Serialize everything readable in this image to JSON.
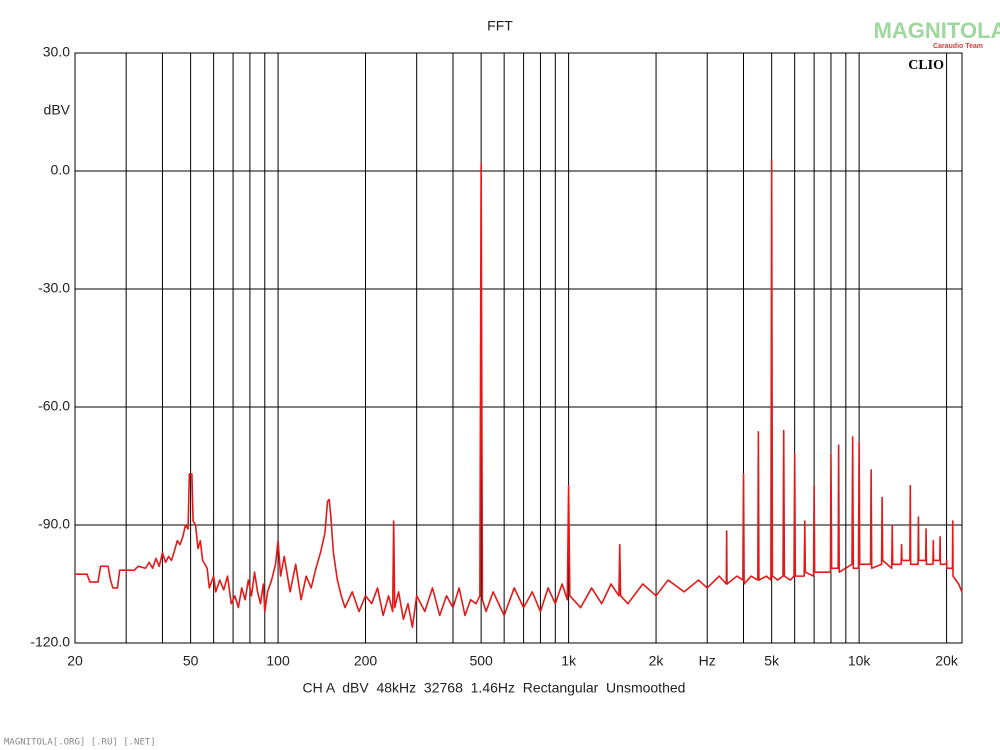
{
  "chart_data": {
    "type": "line",
    "title": "FFT",
    "y_label": "dBV",
    "footer": "CH A  dBV  48kHz  32768  1.46Hz  Rectangular  Unsmoothed",
    "annotations": [
      "CLIO"
    ],
    "x_log": true,
    "grid": true,
    "xlim": [
      20,
      22600
    ],
    "ylim": [
      -120,
      30
    ],
    "xticks": [
      {
        "value": 20,
        "label": "20"
      },
      {
        "value": 50,
        "label": "50"
      },
      {
        "value": 100,
        "label": "100"
      },
      {
        "value": 200,
        "label": "200"
      },
      {
        "value": 500,
        "label": "500"
      },
      {
        "value": 1000,
        "label": "1k"
      },
      {
        "value": 2000,
        "label": "2k"
      },
      {
        "value": 3000,
        "label": "Hz"
      },
      {
        "value": 5000,
        "label": "5k"
      },
      {
        "value": 10000,
        "label": "10k"
      },
      {
        "value": 20000,
        "label": "20k"
      }
    ],
    "x_minor_grid": [
      30,
      40,
      60,
      70,
      80,
      90,
      300,
      400,
      600,
      700,
      800,
      900,
      4000,
      6000,
      7000,
      8000,
      9000
    ],
    "yticks": [
      {
        "value": 30,
        "label": "30.0"
      },
      {
        "value": 0,
        "label": "0.0"
      },
      {
        "value": -30,
        "label": "-30.0"
      },
      {
        "value": -60,
        "label": "-60.0"
      },
      {
        "value": -90,
        "label": "-90.0"
      },
      {
        "value": -120,
        "label": "-120.0"
      }
    ],
    "series": [
      {
        "name": "CH A",
        "color": "#e41a1a",
        "x": [
          20,
          22,
          22.5,
          24,
          24.5,
          26,
          26.5,
          27,
          28,
          28.5,
          32,
          33,
          35,
          36,
          37,
          38,
          39,
          40,
          41,
          42,
          43,
          44,
          45,
          46,
          47,
          48,
          49,
          49.5,
          50.5,
          51,
          52,
          53,
          54,
          55,
          57,
          58,
          60,
          61,
          63,
          65,
          67,
          69,
          71,
          73,
          75,
          77,
          79,
          81,
          83,
          85,
          87,
          89,
          90,
          92,
          95,
          98,
          100,
          102,
          105,
          110,
          115,
          120,
          125,
          130,
          135,
          140,
          145,
          148,
          150,
          152,
          155,
          160,
          165,
          170,
          180,
          190,
          200,
          210,
          220,
          230,
          240,
          248,
          250,
          252,
          260,
          270,
          280,
          290,
          300,
          320,
          340,
          360,
          380,
          400,
          420,
          440,
          460,
          480,
          495,
          500,
          505,
          520,
          550,
          600,
          650,
          700,
          750,
          800,
          850,
          900,
          950,
          990,
          1000,
          1010,
          1100,
          1200,
          1300,
          1400,
          1490,
          1500,
          1510,
          1600,
          1800,
          2000,
          2200,
          2500,
          2800,
          3000,
          3300,
          3490,
          3500,
          3510,
          3800,
          3980,
          4000,
          4020,
          4250,
          4480,
          4500,
          4520,
          4800,
          4970,
          5000,
          5030,
          5250,
          5470,
          5500,
          5530,
          5800,
          5970,
          6000,
          6030,
          6470,
          6500,
          6530,
          6970,
          7000,
          7030,
          7970,
          8000,
          8040,
          8470,
          8500,
          8540,
          9450,
          9500,
          9550,
          9950,
          10000,
          10050,
          10950,
          11000,
          11050,
          11950,
          12000,
          12050,
          12950,
          13000,
          13050,
          13950,
          14000,
          14050,
          14950,
          15000,
          15050,
          15950,
          16000,
          16050,
          16950,
          17000,
          17050,
          17950,
          18000,
          18050,
          18950,
          19000,
          19050,
          19950,
          20000,
          20050,
          20950,
          21000,
          21050,
          22000,
          22600
        ],
        "values": [
          -102.5,
          -102.5,
          -104.5,
          -104.5,
          -100.5,
          -100.5,
          -104,
          -106,
          -106,
          -101.5,
          -101.5,
          -100.5,
          -101,
          -99.5,
          -101,
          -98.5,
          -100.5,
          -97,
          -99.5,
          -98,
          -99,
          -96.5,
          -94,
          -95,
          -93,
          -90,
          -91,
          -77,
          -77,
          -89,
          -90,
          -96,
          -94,
          -99,
          -101,
          -106,
          -103,
          -107,
          -104,
          -106.5,
          -103,
          -110,
          -108,
          -111,
          -106,
          -109,
          -104,
          -108,
          -102,
          -107,
          -110,
          -105,
          -112,
          -107,
          -104,
          -100,
          -94,
          -103,
          -98,
          -107,
          -100,
          -109,
          -103,
          -106,
          -101,
          -97,
          -92,
          -84,
          -83.5,
          -88,
          -97,
          -104,
          -108,
          -111,
          -107,
          -112,
          -108,
          -110,
          -106,
          -113,
          -108,
          -112,
          -89,
          -111,
          -107,
          -114,
          -110,
          -116,
          -108,
          -112,
          -106,
          -113,
          -108,
          -111,
          -106,
          -113,
          -109,
          -110,
          -108,
          2,
          -109,
          -112,
          -107,
          -113,
          -106,
          -111,
          -107,
          -112,
          -106,
          -110,
          -105,
          -109,
          -80,
          -108,
          -111,
          -106,
          -110,
          -105,
          -108,
          -95,
          -108,
          -110,
          -105,
          -108,
          -104,
          -107,
          -104,
          -106,
          -103,
          -105,
          -91.5,
          -105,
          -103,
          -104,
          -77,
          -105,
          -103,
          -104,
          -66.3,
          -104,
          -103,
          -104,
          2.8,
          -103,
          -104,
          -103,
          -66,
          -103,
          -104,
          -103,
          -72,
          -103,
          -103,
          -89,
          -102,
          -103,
          -80,
          -102,
          -102,
          -72,
          -101,
          -101,
          -69.7,
          -102,
          -100,
          -67.6,
          -101,
          -101,
          -69,
          -100,
          -100,
          -76,
          -101,
          -100,
          -83,
          -99,
          -101,
          -90,
          -100,
          -100,
          -95,
          -99,
          -99,
          -80,
          -100,
          -100,
          -88,
          -99,
          -99,
          -91,
          -100,
          -100,
          -94,
          -99,
          -99,
          -93,
          -100,
          -100,
          -99,
          -101,
          -101,
          -89,
          -103,
          -105,
          -107
        ]
      }
    ]
  },
  "watermark": {
    "brand": "MAGNITOLA",
    "team": "Caraudio Team",
    "domains": "MAGNITOLA[.ORG] [.RU] [.NET]"
  }
}
